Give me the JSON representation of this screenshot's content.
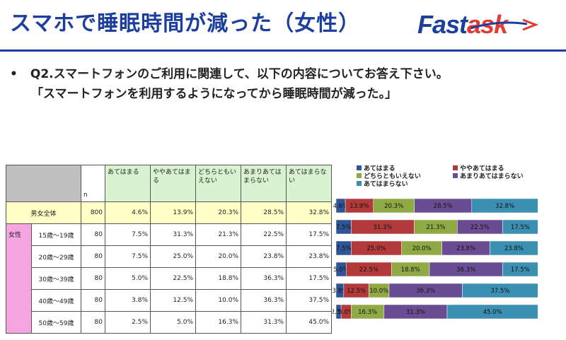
{
  "header": {
    "title": "スマホで睡眠時間が減った（女性）",
    "logo_fast": "Fast",
    "logo_ask": "ask"
  },
  "question": {
    "bullet": "•",
    "line1": "Q2.スマートフォンのご利用に関連して、以下の内容についてお答え下さい。",
    "line2": "「スマートフォンを利用するようになってから睡眠時間が減った。」"
  },
  "table": {
    "headers": {
      "n": "n",
      "cols": [
        "あてはまる",
        "ややあてはまる",
        "どちらともいえない",
        "あまりあてはまらない",
        "あてはまらない"
      ]
    },
    "group_label": "女性",
    "rows": [
      {
        "label": "男女全体",
        "n": "800",
        "v": [
          "4.6%",
          "13.9%",
          "20.3%",
          "28.5%",
          "32.8%"
        ]
      },
      {
        "label": "15歳～19歳",
        "n": "80",
        "v": [
          "7.5%",
          "31.3%",
          "21.3%",
          "22.5%",
          "17.5%"
        ]
      },
      {
        "label": "20歳～29歳",
        "n": "80",
        "v": [
          "7.5%",
          "25.0%",
          "20.0%",
          "23.8%",
          "23.8%"
        ]
      },
      {
        "label": "30歳～39歳",
        "n": "80",
        "v": [
          "5.0%",
          "22.5%",
          "18.8%",
          "36.3%",
          "17.5%"
        ]
      },
      {
        "label": "40歳～49歳",
        "n": "80",
        "v": [
          "3.8%",
          "12.5%",
          "10.0%",
          "36.3%",
          "37.5%"
        ]
      },
      {
        "label": "50歳～59歳",
        "n": "80",
        "v": [
          "2.5%",
          "5.0%",
          "16.3%",
          "31.3%",
          "45.0%"
        ]
      }
    ]
  },
  "chart_data": {
    "type": "bar",
    "orientation": "horizontal-stacked-100",
    "categories": [
      "男女全体",
      "15歳～19歳",
      "20歳～29歳",
      "30歳～39歳",
      "40歳～49歳",
      "50歳～59歳"
    ],
    "series": [
      {
        "name": "あてはまる",
        "color": "#2f5597",
        "values": [
          4.6,
          7.5,
          7.5,
          5.0,
          3.8,
          2.5
        ]
      },
      {
        "name": "ややあてはまる",
        "color": "#b23a3a",
        "values": [
          13.9,
          31.3,
          25.0,
          22.5,
          12.5,
          5.0
        ]
      },
      {
        "name": "どちらともいえない",
        "color": "#8faa45",
        "values": [
          20.3,
          21.3,
          20.0,
          18.8,
          10.0,
          16.3
        ]
      },
      {
        "name": "あまりあてはまらない",
        "color": "#6a4c93",
        "values": [
          28.5,
          22.5,
          23.8,
          36.3,
          36.3,
          31.3
        ]
      },
      {
        "name": "あてはまらない",
        "color": "#3b8fb0",
        "values": [
          32.8,
          17.5,
          23.8,
          17.5,
          37.5,
          45.0
        ]
      }
    ],
    "xlim": [
      0,
      100
    ],
    "legend": "top",
    "value_suffix": "%"
  }
}
